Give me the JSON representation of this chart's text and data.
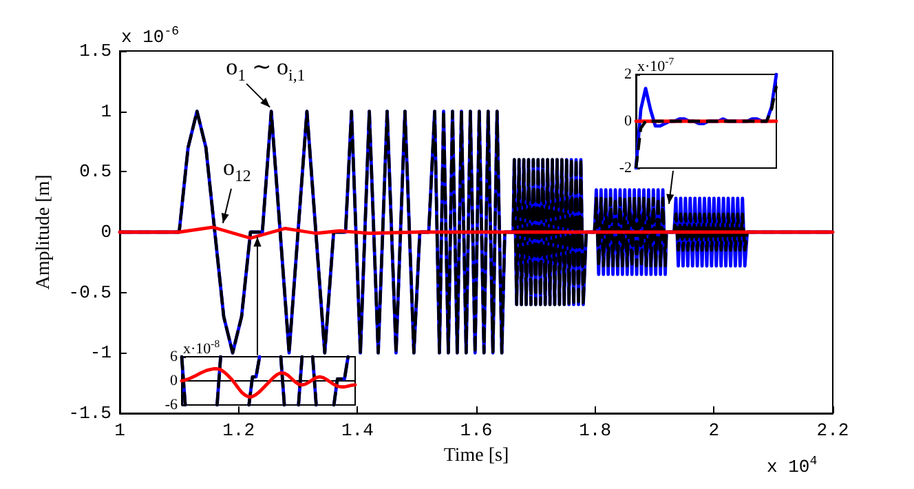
{
  "chart_data": [
    {
      "type": "line",
      "xlabel": "Time [s]",
      "ylabel": "Amplitude [m]",
      "xlim": [
        1,
        2.2
      ],
      "xticks": [
        1,
        1.2,
        1.4,
        1.6,
        1.8,
        2,
        2.2
      ],
      "ylim": [
        -1.5,
        1.5
      ],
      "yticks": [
        -1.5,
        -1,
        -0.5,
        0,
        0.5,
        1,
        1.5
      ],
      "marker": "none",
      "annotations": [
        {
          "text": "o$_{1}$ ∼ o$_{i,1}$",
          "x": 1.255,
          "y": 1
        },
        {
          "text": "o$_{12}$",
          "x": 1.176,
          "y": 0.04
        },
        "x 10$^{-6}$",
        "x 10$^{4}$"
      ],
      "x": [
        1,
        1.1,
        1.115,
        1.13,
        1.145,
        1.16,
        1.175,
        1.19,
        1.205,
        1.22,
        1.24,
        1.255,
        1.27,
        1.285,
        1.3,
        1.315,
        1.33,
        1.345,
        1.36,
        1.38,
        1.39,
        1.405,
        1.42,
        1.435,
        1.45,
        1.465,
        1.48,
        1.495,
        1.505,
        1.52,
        1.53,
        1.538,
        1.545,
        1.553,
        1.56,
        1.568,
        1.575,
        1.583,
        1.59,
        1.598,
        1.605,
        1.613,
        1.62,
        1.628,
        1.635,
        1.643,
        1.648,
        1.662,
        1.664,
        1.668,
        1.672,
        1.676,
        1.68,
        1.684,
        1.688,
        1.692,
        1.696,
        1.7,
        1.704,
        1.708,
        1.712,
        1.716,
        1.72,
        1.724,
        1.728,
        1.732,
        1.736,
        1.74,
        1.744,
        1.748,
        1.752,
        1.756,
        1.76,
        1.764,
        1.768,
        1.772,
        1.776,
        1.78,
        1.785,
        1.799,
        1.802,
        1.806,
        1.81,
        1.814,
        1.818,
        1.822,
        1.826,
        1.83,
        1.834,
        1.838,
        1.842,
        1.846,
        1.85,
        1.854,
        1.858,
        1.862,
        1.866,
        1.87,
        1.874,
        1.878,
        1.882,
        1.886,
        1.89,
        1.894,
        1.898,
        1.902,
        1.906,
        1.91,
        1.914,
        1.918,
        1.92,
        1.933,
        1.936,
        1.94,
        1.944,
        1.948,
        1.952,
        1.956,
        1.96,
        1.964,
        1.968,
        1.972,
        1.976,
        1.98,
        1.984,
        1.988,
        1.992,
        1.996,
        2,
        2.004,
        2.008,
        2.012,
        2.016,
        2.02,
        2.024,
        2.028,
        2.032,
        2.036,
        2.04,
        2.044,
        2.048,
        2.052,
        2.056,
        2.2
      ],
      "series": [
        {
          "color": "#0000ff",
          "line_style": "solid",
          "values": [
            0,
            0,
            0.7,
            1,
            0.7,
            0,
            -0.7,
            -1,
            -0.7,
            0,
            0,
            1,
            0,
            -1,
            0,
            1,
            0,
            -1,
            0,
            0,
            1,
            -1,
            1,
            -1,
            1,
            -1,
            1,
            -1,
            0,
            0,
            1,
            -1,
            1,
            -1,
            1,
            -1,
            1,
            -1,
            1,
            -1,
            1,
            -1,
            1,
            -1,
            1,
            -1,
            0,
            0,
            0.6,
            -0.6,
            0.6,
            -0.6,
            0.6,
            -0.6,
            0.6,
            -0.6,
            0.6,
            -0.6,
            0.6,
            -0.6,
            0.6,
            -0.6,
            0.6,
            -0.6,
            0.6,
            -0.6,
            0.6,
            -0.6,
            0.6,
            -0.6,
            0.6,
            -0.6,
            0.6,
            -0.6,
            0.6,
            -0.6,
            0.6,
            -0.6,
            0,
            0,
            0.35,
            -0.35,
            0.35,
            -0.35,
            0.35,
            -0.35,
            0.35,
            -0.35,
            0.35,
            -0.35,
            0.35,
            -0.35,
            0.35,
            -0.35,
            0.35,
            -0.35,
            0.35,
            -0.35,
            0.35,
            -0.35,
            0.35,
            -0.35,
            0.35,
            -0.35,
            0.35,
            -0.35,
            0.35,
            -0.35,
            0.35,
            -0.35,
            0,
            0,
            0.28,
            -0.28,
            0.28,
            -0.28,
            0.28,
            -0.28,
            0.28,
            -0.28,
            0.28,
            -0.28,
            0.28,
            -0.28,
            0.28,
            -0.28,
            0.28,
            -0.28,
            0.28,
            -0.28,
            0.28,
            -0.28,
            0.28,
            -0.28,
            0.28,
            -0.28,
            0.28,
            -0.28,
            0.28,
            -0.28,
            0.28,
            -0.28,
            0,
            0
          ]
        },
        {
          "color": "#000000",
          "line_style": "dashed",
          "values": [
            0,
            0,
            0.7,
            1,
            0.7,
            0,
            -0.7,
            -1,
            -0.7,
            0,
            0,
            1,
            0,
            -1,
            0,
            1,
            0,
            -1,
            0,
            0,
            1,
            -1,
            1,
            -1,
            1,
            -1,
            1,
            -1,
            0,
            0,
            1,
            -1,
            1,
            -1,
            1,
            -1,
            1,
            -1,
            1,
            -1,
            1,
            -1,
            1,
            -1,
            1,
            -1,
            0,
            0,
            0.6,
            -0.6,
            0.6,
            -0.6,
            0.6,
            -0.6,
            0.6,
            -0.6,
            0.6,
            -0.6,
            0.6,
            -0.6,
            0.6,
            -0.6,
            0.6,
            -0.6,
            0.6,
            -0.6,
            0.6,
            -0.6,
            0.6,
            -0.6,
            0.6,
            -0.6,
            0.6,
            -0.6,
            0.6,
            -0.6,
            0.6,
            -0.6,
            0,
            0,
            0.28,
            -0.28,
            0.28,
            -0.28,
            0.28,
            -0.28,
            0.28,
            -0.28,
            0.28,
            -0.28,
            0.28,
            -0.28,
            0.28,
            -0.28,
            0.28,
            -0.28,
            0.28,
            -0.28,
            0.28,
            -0.28,
            0.28,
            -0.28,
            0.28,
            -0.28,
            0.28,
            -0.28,
            0.28,
            -0.28,
            0.28,
            -0.28,
            0,
            0,
            0.15,
            -0.15,
            0.15,
            -0.15,
            0.15,
            -0.15,
            0.15,
            -0.15,
            0.15,
            -0.15,
            0.15,
            -0.15,
            0.15,
            -0.15,
            0.15,
            -0.15,
            0.15,
            -0.15,
            0.15,
            -0.15,
            0.15,
            -0.15,
            0.15,
            -0.15,
            0.15,
            -0.15,
            0.15,
            -0.15,
            0.15,
            -0.15,
            0,
            0
          ]
        },
        {
          "color": "#ff0000",
          "line_style": "solid",
          "x": [
            1,
            1.1,
            1.157,
            1.22,
            1.278,
            1.33,
            1.37,
            1.42,
            1.5,
            2.2
          ],
          "values": [
            0,
            0,
            0.04,
            -0.05,
            0.03,
            -0.01,
            0.01,
            -0.01,
            0,
            0
          ]
        }
      ]
    },
    {
      "type": "line",
      "tick_labels": "y",
      "marker": "none",
      "categories": [
        null,
        null,
        null,
        null,
        null,
        null,
        null,
        null,
        null,
        null,
        null,
        null,
        null,
        null,
        null,
        null,
        null,
        null,
        null,
        null,
        null,
        null,
        null,
        null,
        null,
        null,
        null,
        null,
        null,
        null,
        null,
        null,
        null,
        null,
        null,
        null,
        null,
        null,
        null,
        null,
        null,
        null,
        null,
        null,
        null,
        null,
        null,
        null,
        null,
        null
      ],
      "ylim": [
        -6,
        6
      ],
      "yticks": [
        -6,
        0,
        6
      ],
      "annotations": [
        "x·10$^{-8}$"
      ],
      "series": [
        {
          "color": "#0000ff",
          "line_style": "solid",
          "values": [
            6,
            -6,
            null,
            null,
            null,
            null,
            null,
            null,
            null,
            null,
            -6,
            6,
            null,
            null,
            null,
            null,
            null,
            null,
            null,
            -6,
            1,
            1,
            6,
            null,
            null,
            null,
            null,
            null,
            6,
            -6,
            null,
            null,
            null,
            -6,
            6,
            null,
            null,
            6,
            -6,
            null,
            null,
            null,
            null,
            -6,
            0.5,
            0.5,
            0.5,
            6,
            null,
            null
          ]
        },
        {
          "color": "#000000",
          "line_style": "dashed",
          "values": [
            6,
            -6,
            null,
            null,
            null,
            null,
            null,
            null,
            null,
            null,
            -6,
            6,
            null,
            null,
            null,
            null,
            null,
            null,
            null,
            -6,
            1,
            1,
            6,
            null,
            null,
            null,
            null,
            null,
            6,
            -6,
            null,
            null,
            null,
            -6,
            6,
            null,
            null,
            6,
            -6,
            null,
            null,
            null,
            null,
            -6,
            0.5,
            0.5,
            0.5,
            6,
            null,
            null
          ]
        },
        {
          "color": "#ff0000",
          "line_style": "solid",
          "values": [
            0,
            0.2,
            0.5,
            0.9,
            1.3,
            1.8,
            2.2,
            2.6,
            2.8,
            3,
            3,
            2.8,
            2.2,
            1.4,
            0.5,
            -0.6,
            -1.8,
            -2.9,
            -3.6,
            -4,
            -3.9,
            -3.4,
            -2.7,
            -1.8,
            -0.9,
            0,
            0.9,
            1.6,
            2,
            1.9,
            1.4,
            0.6,
            -0.2,
            -0.8,
            -1,
            -0.8,
            -0.3,
            0.3,
            0.8,
            1,
            0.8,
            0.3,
            -0.3,
            -0.9,
            -1.3,
            -1.5,
            -1.5,
            -1.3,
            -1.1,
            -1
          ]
        }
      ]
    },
    {
      "type": "line",
      "tick_labels": "y",
      "marker": "none",
      "categories": [
        null,
        null,
        null,
        null,
        null,
        null,
        null,
        null,
        null,
        null,
        null,
        null,
        null,
        null,
        null,
        null,
        null,
        null,
        null,
        null,
        null,
        null,
        null,
        null,
        null,
        null,
        null,
        null,
        null,
        null
      ],
      "ylim": [
        -2,
        2
      ],
      "yticks": [
        -2,
        0,
        2
      ],
      "annotations": [
        "x·10$^{-7}$"
      ],
      "series": [
        {
          "color": "#0000ff",
          "line_style": "solid",
          "values": [
            -2,
            0.5,
            1.4,
            0.5,
            -0.2,
            -0.2,
            -0.1,
            0,
            0,
            0.1,
            0.1,
            0,
            0,
            -0.1,
            -0.1,
            0,
            0,
            0,
            0.1,
            0,
            0,
            0,
            0,
            0,
            0.1,
            0.1,
            0,
            0,
            0.6,
            2
          ]
        },
        {
          "color": "#000000",
          "line_style": "dashed",
          "values": [
            -2,
            -0.3,
            0,
            0,
            0,
            0,
            0,
            0,
            0,
            0,
            0,
            0,
            0,
            0,
            0,
            0,
            0,
            0,
            0,
            0,
            0,
            0,
            0,
            0,
            0,
            0,
            0,
            0,
            0.5,
            1.5
          ]
        },
        {
          "color": "#ff0000",
          "line_style": "solid",
          "values": [
            0,
            0,
            0,
            0,
            0,
            0,
            0,
            0,
            0,
            0,
            0,
            0,
            0,
            0,
            0,
            0,
            0,
            0,
            0,
            0,
            0,
            0,
            0,
            0,
            0,
            0,
            0,
            0,
            0,
            0
          ]
        }
      ]
    }
  ]
}
